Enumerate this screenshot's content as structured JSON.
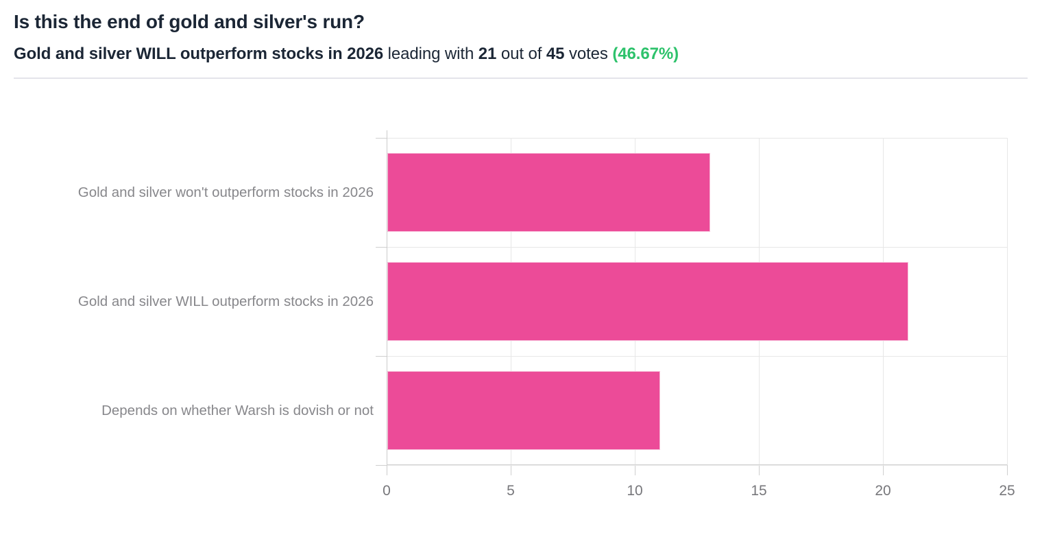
{
  "header": {
    "title": "Is this the end of gold and silver's run?",
    "subtitle": {
      "leading_option": "Gold and silver WILL outperform stocks in 2026",
      "text_1": " leading with ",
      "leading_votes": "21",
      "text_2": " out of ",
      "total_votes": "45",
      "text_3": " votes ",
      "percentage": "(46.67%)"
    }
  },
  "chart_data": {
    "type": "bar",
    "orientation": "horizontal",
    "categories": [
      "Gold and silver won't outperform stocks in 2026",
      "Gold and silver WILL outperform stocks in 2026",
      "Depends on whether Warsh is dovish or not"
    ],
    "values": [
      13,
      21,
      11
    ],
    "x_ticks": [
      0,
      5,
      10,
      15,
      20,
      25
    ],
    "xlim": [
      0,
      25
    ],
    "grid": true,
    "legend": "none",
    "bar_color": "#ec4b98"
  },
  "colors": {
    "title_text": "#1b2635",
    "accent_green": "#2dc26b",
    "bar_pink": "#ec4b98",
    "category_label_gray": "#87878b",
    "tick_label_gray": "#77777b",
    "grid_line": "#e7e7e7",
    "axis_line": "#cccccc",
    "divider": "#e4e4ea"
  }
}
